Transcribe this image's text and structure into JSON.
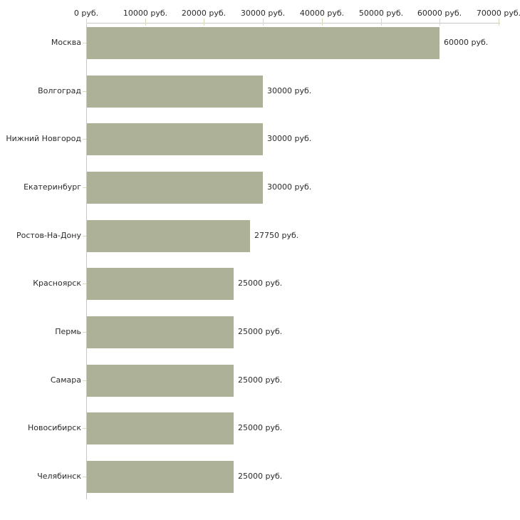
{
  "chart_data": {
    "type": "bar",
    "orientation": "horizontal",
    "title": "",
    "xlabel": "",
    "ylabel": "",
    "unit": "руб.",
    "categories": [
      "Москва",
      "Волгоград",
      "Нижний Новгород",
      "Екатеринбург",
      "Ростов-На-Дону",
      "Красноярск",
      "Пермь",
      "Самара",
      "Новосибирск",
      "Челябинск"
    ],
    "values": [
      60000,
      30000,
      30000,
      30000,
      27750,
      25000,
      25000,
      25000,
      25000,
      25000
    ],
    "bar_labels": [
      "60000 руб.",
      "30000 руб.",
      "30000 руб.",
      "30000 руб.",
      "27750 руб.",
      "25000 руб.",
      "25000 руб.",
      "25000 руб.",
      "25000 руб.",
      "25000 руб."
    ],
    "x_axis": {
      "position": "top",
      "min": 0,
      "max": 70000,
      "tick_values": [
        0,
        10000,
        20000,
        30000,
        40000,
        50000,
        60000,
        70000
      ],
      "tick_labels": [
        "0 руб.",
        "10000 руб.",
        "20000 руб.",
        "30000 руб.",
        "40000 руб.",
        "50000 руб.",
        "60000 руб.",
        "70000 руб."
      ]
    },
    "grid": false,
    "legend": null,
    "colors": {
      "bar": "#ACB197",
      "axis_line": "#C8C8C8",
      "tick_mark": "#D8DBB6",
      "text": "#2B2B2B",
      "background": "#FFFFFF"
    }
  }
}
